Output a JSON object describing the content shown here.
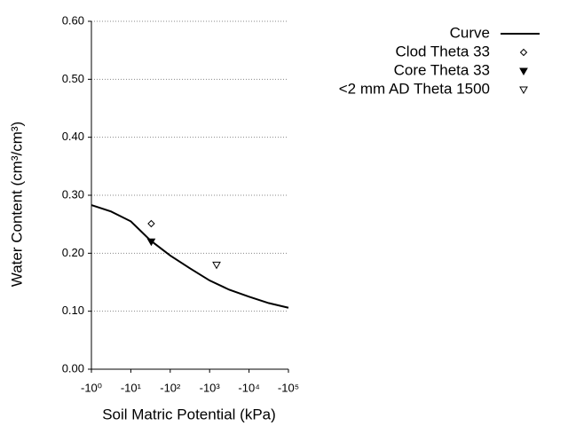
{
  "chart_data": {
    "type": "line",
    "xlabel": "Soil Matric Potential (kPa)",
    "ylabel": "Water Content (cm³/cm³)",
    "xscale": "log",
    "xlim": [
      -1,
      -100000
    ],
    "xticks": [
      {
        "value": -1,
        "label": "-10⁰"
      },
      {
        "value": -10,
        "label": "-10¹"
      },
      {
        "value": -100,
        "label": "-10²"
      },
      {
        "value": -1000,
        "label": "-10³"
      },
      {
        "value": -10000,
        "label": "-10⁴"
      },
      {
        "value": -100000,
        "label": "-10⁵"
      }
    ],
    "ylim": [
      0,
      0.6
    ],
    "yticks": [
      {
        "value": 0,
        "label": "0.00"
      },
      {
        "value": 0.1,
        "label": "0.10"
      },
      {
        "value": 0.2,
        "label": "0.20"
      },
      {
        "value": 0.3,
        "label": "0.30"
      },
      {
        "value": 0.4,
        "label": "0.40"
      },
      {
        "value": 0.5,
        "label": "0.50"
      },
      {
        "value": 0.6,
        "label": "0.60"
      }
    ],
    "grid": true,
    "legend": "top-right",
    "series": [
      {
        "name": "Curve",
        "color": "#000000",
        "marker": "line",
        "x": [
          -1,
          -3.16,
          -10,
          -31.6,
          -100,
          -316,
          -1000,
          -3162,
          -10000,
          -31623,
          -100000
        ],
        "values": [
          0.283,
          0.272,
          0.255,
          0.222,
          0.196,
          0.174,
          0.153,
          0.137,
          0.125,
          0.114,
          0.106
        ]
      },
      {
        "name": "Clod Theta 33",
        "color": "#000000",
        "marker": "diamond",
        "x": [
          -33
        ],
        "values": [
          0.251
        ]
      },
      {
        "name": "Core Theta 33",
        "color": "#000000",
        "marker": "triangle-down-filled",
        "x": [
          -33
        ],
        "values": [
          0.22
        ]
      },
      {
        "name": "<2 mm AD Theta 1500",
        "color": "#000000",
        "marker": "triangle-down",
        "x": [
          -1500
        ],
        "values": [
          0.18
        ]
      }
    ]
  }
}
